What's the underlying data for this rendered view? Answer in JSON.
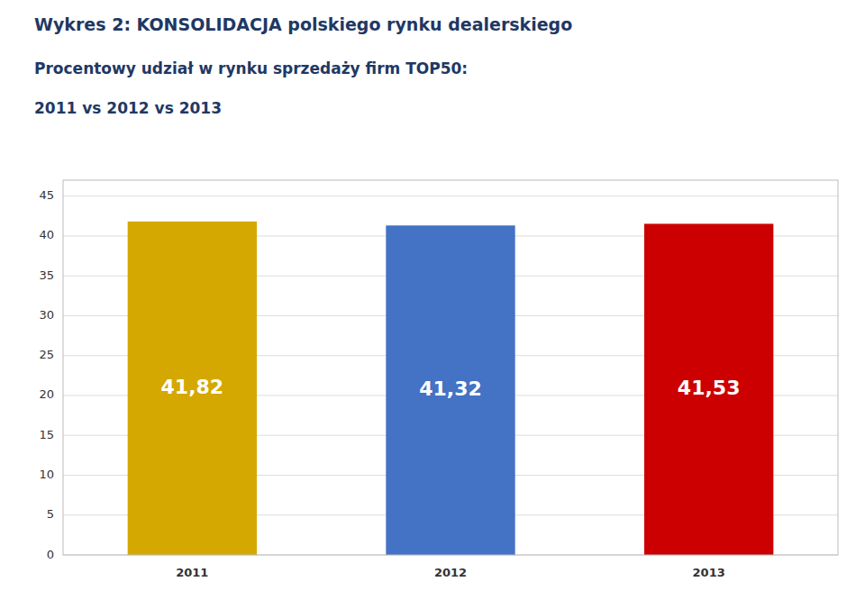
{
  "chart_data": {
    "type": "bar",
    "title": "Wykres 2: KONSOLIDACJA polskiego rynku dealerskiego",
    "subtitle": [
      "Procentowy udział w rynku sprzedaży firm TOP50:",
      "2011 vs 2012 vs 2013"
    ],
    "categories": [
      "2011",
      "2012",
      "2013"
    ],
    "values": [
      41.82,
      41.32,
      41.53
    ],
    "value_labels": [
      "41,82",
      "41,32",
      "41,53"
    ],
    "colors": [
      "#D4A800",
      "#4472C4",
      "#CC0000"
    ],
    "ylim": [
      0,
      47
    ],
    "yticks": [
      0,
      5,
      10,
      15,
      20,
      25,
      30,
      35,
      40,
      45
    ],
    "grid": true,
    "data_labels": true
  }
}
